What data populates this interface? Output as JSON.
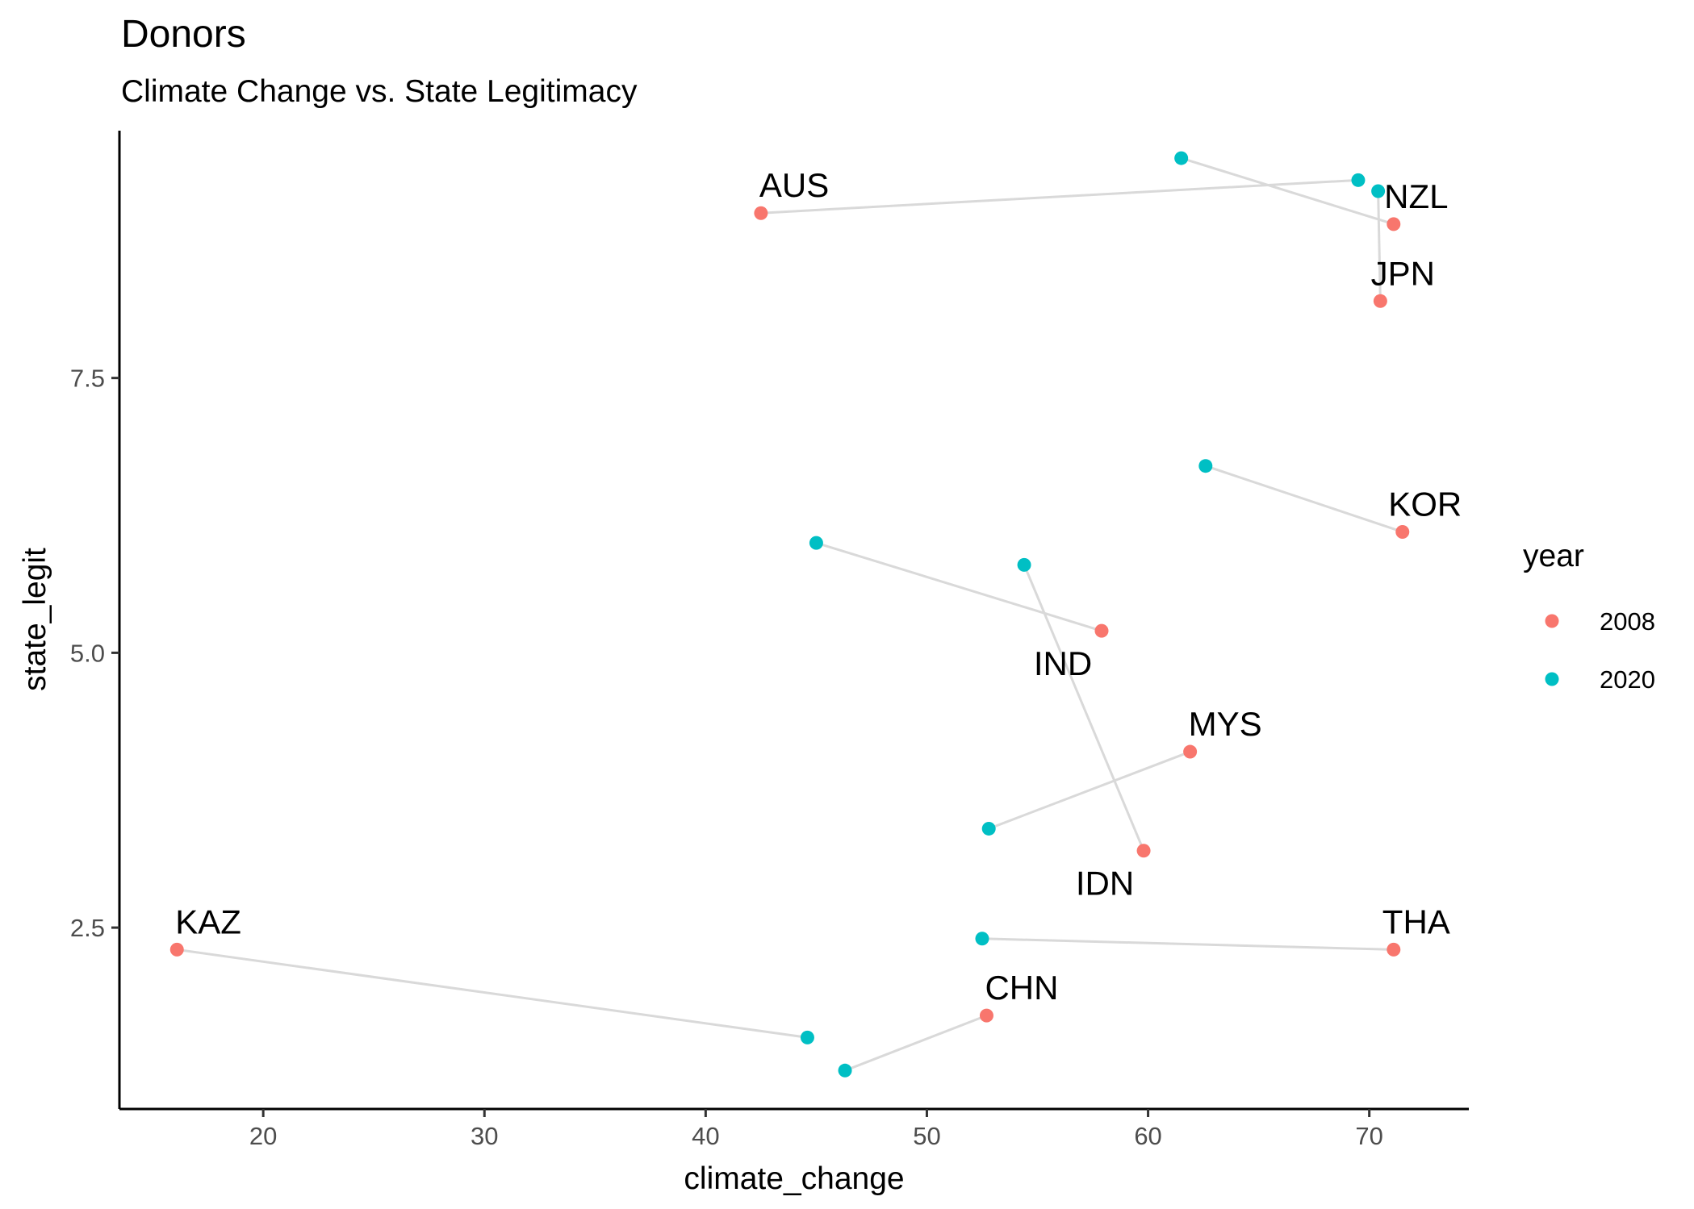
{
  "chart_data": {
    "type": "scatter",
    "title": "Donors",
    "subtitle": "Climate Change vs. State Legitimacy",
    "xlabel": "climate_change",
    "ylabel": "state_legit",
    "xlim": [
      13.5,
      74.5
    ],
    "ylim": [
      0.85,
      9.75
    ],
    "x_ticks": [
      20,
      30,
      40,
      50,
      60,
      70
    ],
    "y_ticks": [
      2.5,
      5.0,
      7.5
    ],
    "x_tick_labels": [
      "20",
      "30",
      "40",
      "50",
      "60",
      "70"
    ],
    "y_tick_labels": [
      "2.5",
      "5.0",
      "7.5"
    ],
    "grid": false,
    "legend": {
      "title": "year",
      "placement": "right",
      "entries": [
        {
          "label": "2008",
          "color": "#F8766D"
        },
        {
          "label": "2020",
          "color": "#00BFC4"
        }
      ]
    },
    "connector_color": "#d9d9d9",
    "countries": [
      {
        "name": "AUS",
        "label": "AUS",
        "p2008": [
          42.5,
          9.0
        ],
        "p2020": [
          69.5,
          9.3
        ],
        "label_side": "above"
      },
      {
        "name": "NZL",
        "label": "NZL",
        "p2008": [
          71.1,
          8.9
        ],
        "p2020": [
          61.5,
          9.5
        ],
        "label_side": "above"
      },
      {
        "name": "JPN",
        "label": "JPN",
        "p2008": [
          70.5,
          8.2
        ],
        "p2020": [
          70.4,
          9.2
        ],
        "label_side": "above"
      },
      {
        "name": "KOR",
        "label": "KOR",
        "p2008": [
          71.5,
          6.1
        ],
        "p2020": [
          62.6,
          6.7
        ],
        "label_side": "above"
      },
      {
        "name": "IND",
        "label": "IND",
        "p2008": [
          57.9,
          5.2
        ],
        "p2020": [
          45.0,
          6.0
        ],
        "label_side": "below"
      },
      {
        "name": "IDN",
        "label": "IDN",
        "p2008": [
          59.8,
          3.2
        ],
        "p2020": [
          54.4,
          5.8
        ],
        "label_side": "below"
      },
      {
        "name": "MYS",
        "label": "MYS",
        "p2008": [
          61.9,
          4.1
        ],
        "p2020": [
          52.8,
          3.4
        ],
        "label_side": "above"
      },
      {
        "name": "THA",
        "label": "THA",
        "p2008": [
          71.1,
          2.3
        ],
        "p2020": [
          52.5,
          2.4
        ],
        "label_side": "above"
      },
      {
        "name": "KAZ",
        "label": "KAZ",
        "p2008": [
          16.1,
          2.3
        ],
        "p2020": [
          44.6,
          1.5
        ],
        "label_side": "above"
      },
      {
        "name": "CHN",
        "label": "CHN",
        "p2008": [
          52.7,
          1.7
        ],
        "p2020": [
          46.3,
          1.2
        ],
        "label_side": "above"
      }
    ]
  }
}
